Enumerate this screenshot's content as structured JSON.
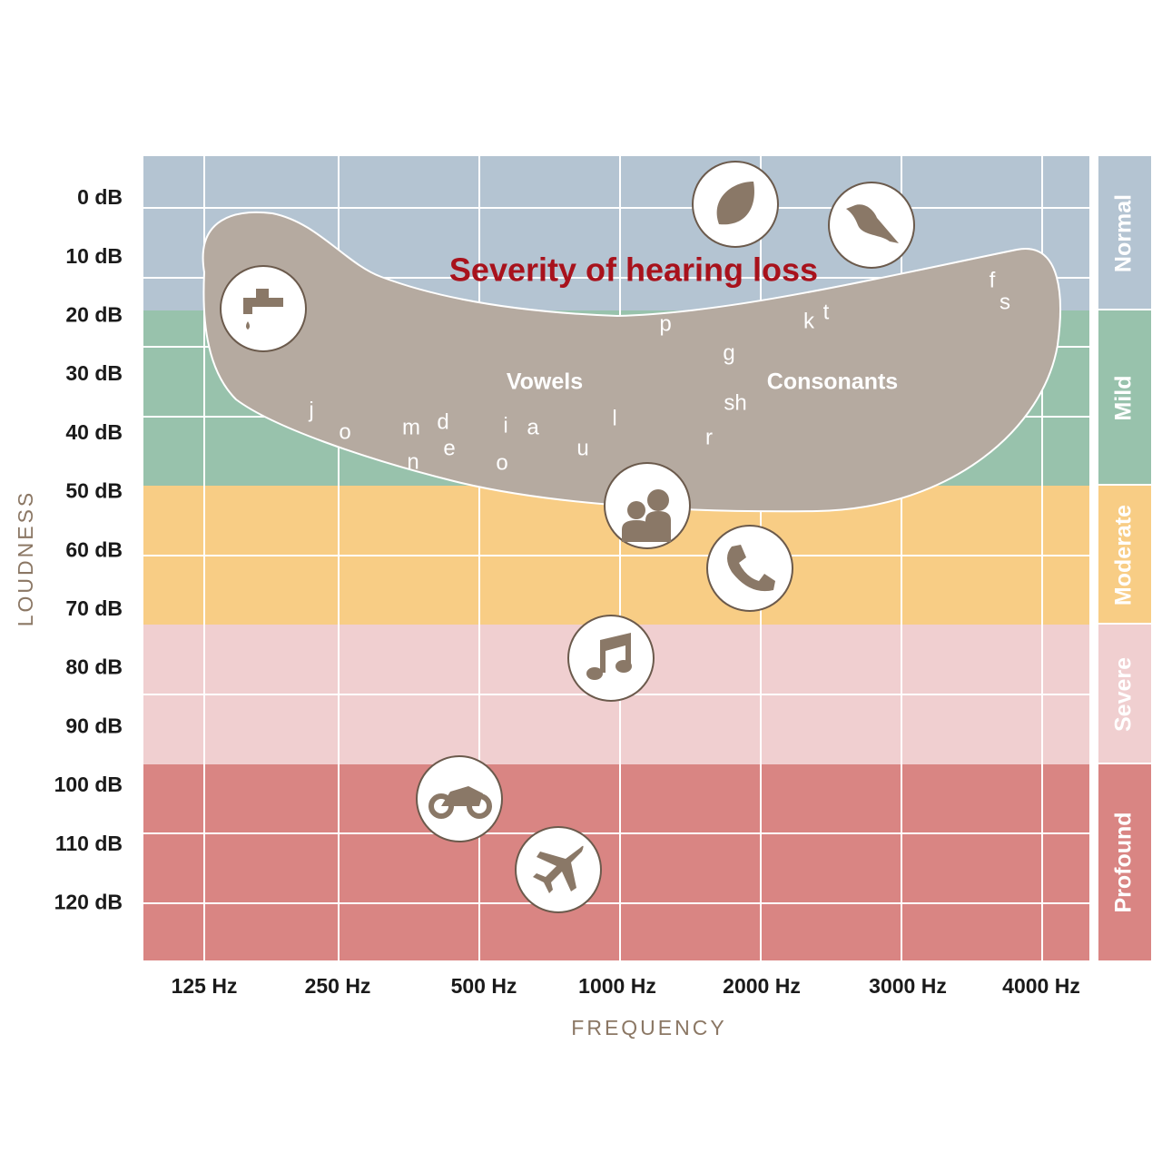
{
  "title": "Severity of hearing loss",
  "y_axis": {
    "title": "LOUDNESS",
    "labels": [
      "0 dB",
      "10 dB",
      "20 dB",
      "30 dB",
      "40 dB",
      "50 dB",
      "60 dB",
      "70 dB",
      "80 dB",
      "90 dB",
      "100 dB",
      "110 dB",
      "120 dB"
    ]
  },
  "x_axis": {
    "title": "FREQUENCY",
    "labels": [
      "125 Hz",
      "250 Hz",
      "500 Hz",
      "1000 Hz",
      "2000 Hz",
      "3000 Hz",
      "4000 Hz"
    ]
  },
  "bands": [
    "Normal",
    "Mild",
    "Moderate",
    "Severe",
    "Profound"
  ],
  "regions": {
    "vowels": "Vowels",
    "consonants": "Consonants"
  },
  "sounds": [
    "j",
    "o",
    "m",
    "d",
    "n",
    "e",
    "i",
    "a",
    "o",
    "u",
    "l",
    "r",
    "p",
    "g",
    "sh",
    "k",
    "t",
    "f",
    "s"
  ]
}
